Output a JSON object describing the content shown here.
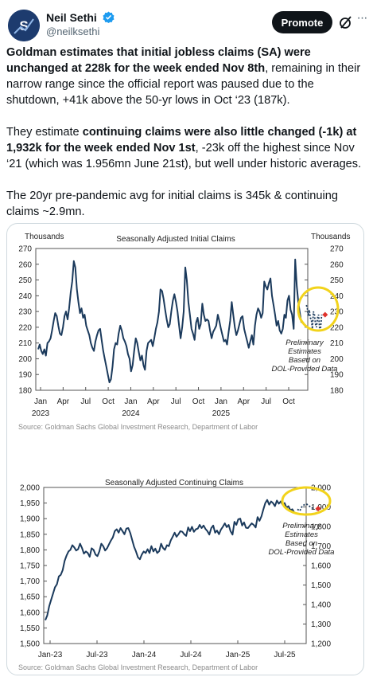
{
  "author": {
    "name": "Neil Sethi",
    "handle": "@neilksethi"
  },
  "actions": {
    "promote_label": "Promote",
    "more_label": "···"
  },
  "tweet": {
    "p1": {
      "bold1": "Goldman estimates that initial jobless claims (SA) were unchanged at 228k for the week ended Nov 8th",
      "text1": ", remaining in their narrow range since the official report was paused due to the shutdown, +41k above the 50-yr lows in Oct ‘23 (187k)."
    },
    "p2": {
      "text1": "They estimate ",
      "bold1": "continuing claims were also little changed (-1k) at 1,932k for the week ended Nov 1st",
      "text2": ", -23k off the highest since Nov ‘21 (which was 1.956mn June 21st), but well under historic averages."
    },
    "p3": {
      "text1": "The 20yr pre-pandemic avg for initial claims is 345k & continuing claims ~2.9mn."
    }
  },
  "colors": {
    "series": "#1b3a5c",
    "highlight_circle": "#f2d31b",
    "estimate_marker": "#e0322c",
    "source_text": "#8a8a8a"
  },
  "chart_data": [
    {
      "type": "line",
      "title": "Seasonally Adjusted Initial Claims",
      "ylabel_left": "Thousands",
      "ylabel_right": "Thousands",
      "ylim": [
        180,
        270
      ],
      "yticks": [
        "180",
        "190",
        "200",
        "210",
        "220",
        "230",
        "240",
        "250",
        "260",
        "270"
      ],
      "xtick_labels": [
        "Jan",
        "Apr",
        "Jul",
        "Oct",
        "Jan",
        "Apr",
        "Jul",
        "Oct",
        "Jan",
        "Apr",
        "Jul",
        "Oct"
      ],
      "year_labels": [
        "2023",
        "2024",
        "2025"
      ],
      "annotation": [
        "Preliminary",
        "Estimates",
        "Based on",
        "DOL-Provided Data"
      ],
      "source": "Source: Goldman Sachs Global Investment Research, Department of Labor",
      "series": [
        {
          "values": [
            206,
            209,
            205,
            203,
            206,
            202,
            210,
            211,
            213,
            218,
            224,
            229,
            227,
            221,
            216,
            215,
            220,
            227,
            230,
            225,
            232,
            242,
            249,
            262,
            258,
            244,
            236,
            229,
            232,
            226,
            228,
            221,
            218,
            215,
            210,
            207,
            205,
            211,
            215,
            218,
            219,
            212,
            205,
            200,
            195,
            190,
            185,
            187,
            195,
            206,
            210,
            209,
            216,
            221,
            218,
            213,
            211,
            208,
            203,
            200,
            192,
            196,
            205,
            213,
            210,
            204,
            199,
            202,
            196,
            193,
            205,
            210,
            211,
            212,
            208,
            213,
            219,
            223,
            230,
            244,
            243,
            238,
            231,
            225,
            220,
            222,
            230,
            237,
            241,
            236,
            230,
            221,
            213,
            220,
            230,
            258,
            250,
            236,
            228,
            219,
            216,
            212,
            223,
            226,
            219,
            222,
            235,
            228,
            224,
            225,
            224,
            218,
            213,
            217,
            219,
            221,
            228,
            224,
            219,
            215,
            211,
            212,
            209,
            217,
            224,
            236,
            228,
            220,
            215,
            218,
            222,
            226,
            227,
            219,
            215,
            211,
            207,
            211,
            215,
            209,
            221,
            228,
            232,
            230,
            226,
            229,
            249,
            246,
            244,
            248,
            251,
            240,
            234,
            228,
            221,
            224,
            218,
            216,
            219,
            228,
            226,
            237,
            240,
            231,
            228,
            219,
            263,
            246,
            236,
            229,
            223
          ]
        },
        {
          "name": "estimates",
          "values": [
            234,
            233,
            227,
            231,
            226,
            225,
            219,
            230,
            228,
            222,
            220,
            226,
            228,
            219,
            220,
            228
          ]
        }
      ],
      "estimate_point": 228
    },
    {
      "type": "line",
      "title": "Seasonally Adjusted Continuing Claims",
      "ylim_left": [
        1500,
        2000
      ],
      "ylim_right": [
        1200,
        2000
      ],
      "yticks_left": [
        "1,500",
        "1,550",
        "1,600",
        "1,650",
        "1,700",
        "1,750",
        "1,800",
        "1,850",
        "1,900",
        "1,950",
        "2,000"
      ],
      "yticks_right": [
        "1,200",
        "1,300",
        "1,400",
        "1,500",
        "1,600",
        "1,700",
        "1,800",
        "1,900",
        "2,000"
      ],
      "xtick_labels": [
        "Jan-23",
        "Jul-23",
        "Jan-24",
        "Jul-24",
        "Jan-25",
        "Jul-25"
      ],
      "annotation": [
        "Preliminary",
        "Estimates",
        "Based on",
        "DOL-Provided Data"
      ],
      "source": "Source: Goldman Sachs Global Investment Research, Department of Labor",
      "series": [
        {
          "values": [
            1575,
            1590,
            1620,
            1640,
            1660,
            1680,
            1690,
            1715,
            1720,
            1735,
            1765,
            1782,
            1795,
            1800,
            1815,
            1808,
            1798,
            1802,
            1820,
            1806,
            1788,
            1795,
            1790,
            1778,
            1805,
            1800,
            1785,
            1780,
            1795,
            1820,
            1812,
            1798,
            1805,
            1818,
            1830,
            1840,
            1860,
            1866,
            1855,
            1870,
            1860,
            1850,
            1868,
            1870,
            1854,
            1832,
            1810,
            1795,
            1776,
            1770,
            1785,
            1795,
            1790,
            1802,
            1790,
            1812,
            1795,
            1804,
            1790,
            1796,
            1820,
            1806,
            1800,
            1815,
            1812,
            1830,
            1842,
            1855,
            1842,
            1850,
            1860,
            1858,
            1850,
            1845,
            1872,
            1860,
            1874,
            1858,
            1866,
            1868,
            1880,
            1870,
            1878,
            1867,
            1860,
            1849,
            1870,
            1878,
            1855,
            1862,
            1850,
            1865,
            1874,
            1885,
            1873,
            1880,
            1860,
            1849,
            1890,
            1880,
            1898,
            1900,
            1878,
            1888,
            1871,
            1870,
            1878,
            1885,
            1880,
            1872,
            1905,
            1893,
            1908,
            1930,
            1950,
            1960,
            1945,
            1955,
            1950,
            1940,
            1958,
            1948,
            1955,
            1945,
            1950,
            1935,
            1940,
            1927,
            1930,
            1920
          ]
        },
        {
          "name": "estimates",
          "values": [
            1930,
            1925,
            1940,
            1945,
            1946,
            1940,
            1935,
            1932
          ]
        }
      ],
      "estimate_point": 1932
    }
  ]
}
